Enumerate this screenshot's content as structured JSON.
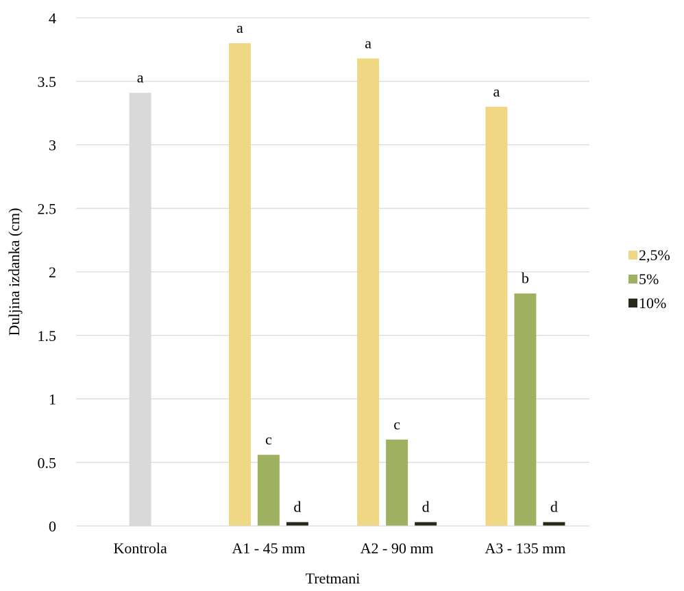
{
  "chart_data": {
    "type": "bar",
    "categories": [
      "Kontrola",
      "A1 - 45 mm",
      "A2 - 90 mm",
      "A3 - 135 mm"
    ],
    "xlabel": "Tretmani",
    "ylabel": "Duljina izdanka (cm)",
    "ylim": [
      0,
      4
    ],
    "yticks": [
      "0",
      "0.5",
      "1",
      "1.5",
      "2",
      "2.5",
      "3",
      "3.5",
      "4"
    ],
    "grid": true,
    "legend_position": "right",
    "control": {
      "value": 3.41,
      "label": "a",
      "color": "#d9d9d9"
    },
    "series": [
      {
        "name": "2,5%",
        "color": "#f0d784",
        "values": [
          null,
          3.8,
          3.68,
          3.3
        ],
        "labels": [
          null,
          "a",
          "a",
          "a"
        ]
      },
      {
        "name": "5%",
        "color": "#9fb061",
        "values": [
          null,
          0.56,
          0.68,
          1.83
        ],
        "labels": [
          null,
          "c",
          "c",
          "b"
        ]
      },
      {
        "name": "10%",
        "color": "#262a19",
        "values": [
          null,
          0.03,
          0.03,
          0.03
        ],
        "labels": [
          null,
          "d",
          "d",
          "d"
        ]
      }
    ]
  }
}
